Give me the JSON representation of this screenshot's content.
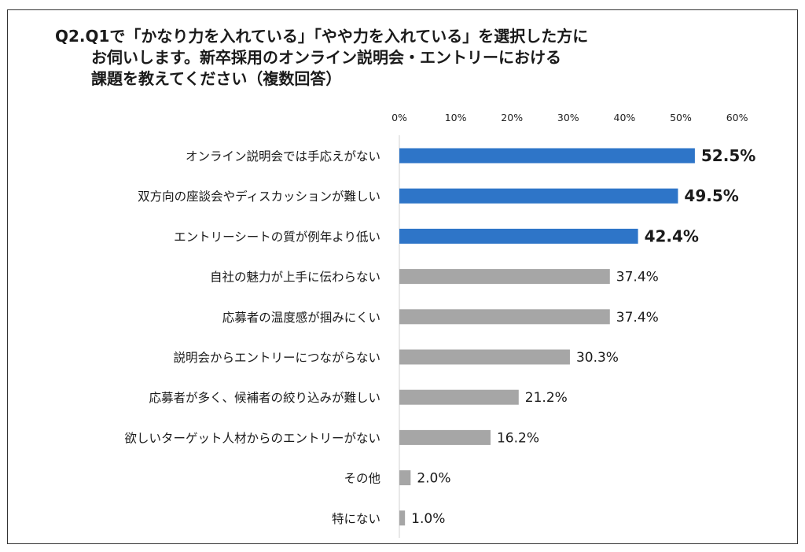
{
  "colors": {
    "highlight": "#2e75c8",
    "normal": "#a6a6a6",
    "axis": "#d0d0d0"
  },
  "chart_data": {
    "type": "bar",
    "orientation": "horizontal",
    "title_lines": [
      "Q2.Q1で「かなり力を入れている」「やや力を入れている」を選択した方に",
      "お伺いします。新卒採用のオンライン説明会・エントリーにおける",
      "課題を教えてください（複数回答）"
    ],
    "categories": [
      "オンライン説明会では手応えがない",
      "双方向の座談会やディスカッションが難しい",
      "エントリーシートの質が例年より低い",
      "自社の魅力が上手に伝わらない",
      "応募者の温度感が掴みにくい",
      "説明会からエントリーにつながらない",
      "応募者が多く、候補者の絞り込みが難しい",
      "欲しいターゲット人材からのエントリーがない",
      "その他",
      "特にない"
    ],
    "values": [
      52.5,
      49.5,
      42.4,
      37.4,
      37.4,
      30.3,
      21.2,
      16.2,
      2.0,
      1.0
    ],
    "value_labels": [
      "52.5%",
      "49.5%",
      "42.4%",
      "37.4%",
      "37.4%",
      "30.3%",
      "21.2%",
      "16.2%",
      "2.0%",
      "1.0%"
    ],
    "highlighted": [
      true,
      true,
      true,
      false,
      false,
      false,
      false,
      false,
      false,
      false
    ],
    "xlim": [
      0,
      60
    ],
    "xticks": [
      0,
      10,
      20,
      30,
      40,
      50,
      60
    ],
    "xtick_labels": [
      "0%",
      "10%",
      "20%",
      "30%",
      "40%",
      "50%",
      "60%"
    ],
    "xtick_position": "top",
    "grid": false,
    "legend": false
  }
}
